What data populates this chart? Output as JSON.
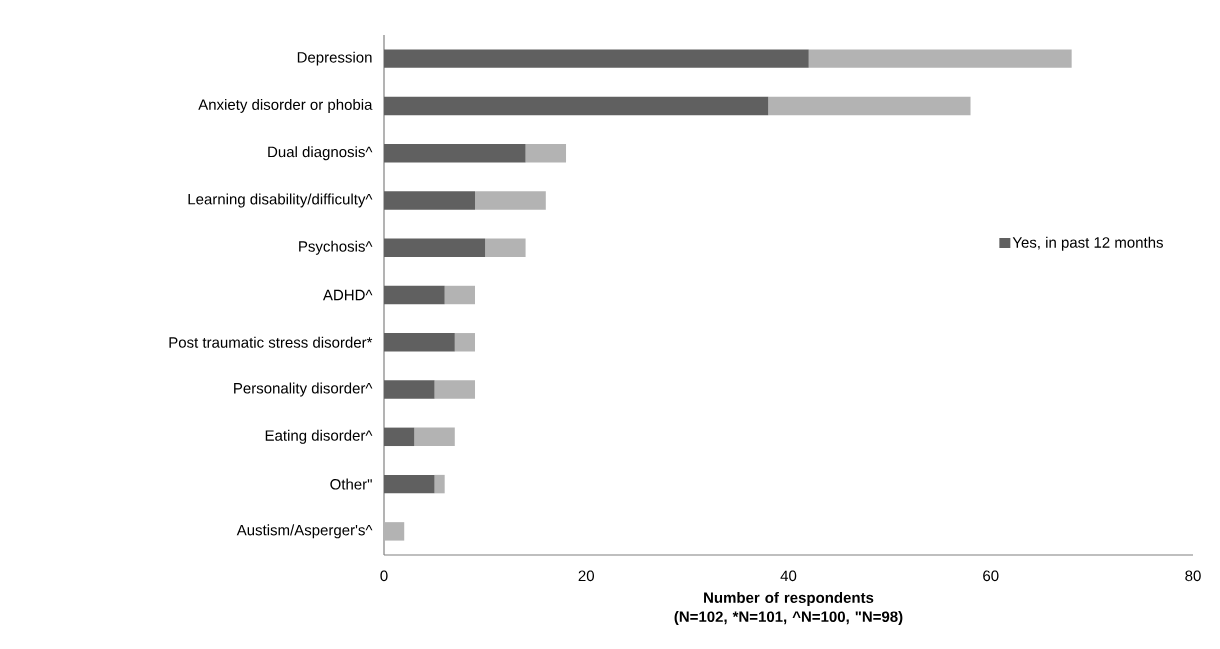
{
  "chart_data": {
    "type": "bar",
    "orientation": "horizontal",
    "stacked": true,
    "categories": [
      "Depression",
      "Anxiety disorder or phobia",
      "Dual diagnosis^",
      "Learning disability/difficulty^",
      "Psychosis^",
      "ADHD^",
      "Post traumatic stress disorder*",
      "Personality disorder^",
      "Eating disorder^",
      "Other\"",
      "Austism/Asperger's^"
    ],
    "series": [
      {
        "name": "Yes, in past 12 months",
        "color": "#606060",
        "values": [
          42,
          38,
          14,
          9,
          10,
          6,
          7,
          5,
          3,
          5,
          0
        ]
      },
      {
        "color": "#b3b3b3",
        "values": [
          26,
          20,
          4,
          7,
          4,
          3,
          2,
          4,
          4,
          1,
          2
        ]
      }
    ],
    "xlabel": "Number of respondents (N=102, *N=101, ^N=100, \"N=98)",
    "xlim": [
      0,
      80
    ],
    "xticks": [
      0,
      20,
      40,
      60,
      80
    ],
    "legend": "right"
  }
}
